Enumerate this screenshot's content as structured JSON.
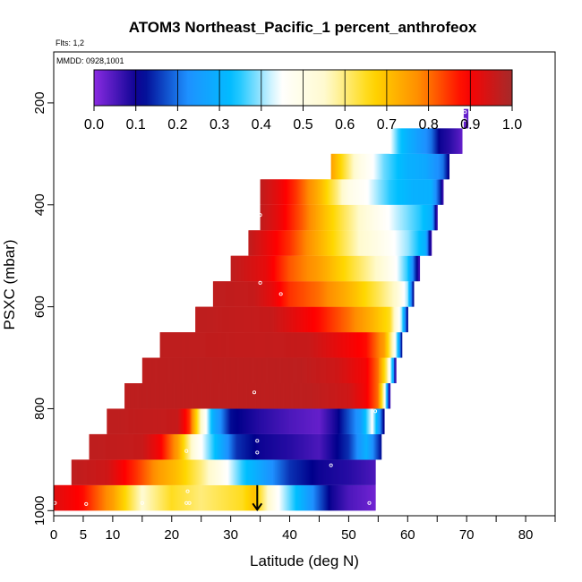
{
  "chart_data": {
    "type": "heatmap",
    "title": "ATOM3 Northeast_Pacific_1 percent_anthrofeox",
    "notes": [
      "Flts: 1,2",
      "MMDD: 0928,1001"
    ],
    "xlabel": "Latitude (deg N)",
    "ylabel": "PSXC (mbar)",
    "xlim": [
      0,
      85
    ],
    "ylim": [
      1010,
      100
    ],
    "x_ticks": [
      0,
      5,
      10,
      20,
      30,
      40,
      50,
      60,
      70,
      80
    ],
    "y_ticks": [
      200,
      400,
      600,
      800,
      1000
    ],
    "colorbar": {
      "range": [
        0,
        1
      ],
      "ticks": [
        "0.0",
        "0.1",
        "0.2",
        "0.3",
        "0.4",
        "0.5",
        "0.6",
        "0.7",
        "0.8",
        "0.9",
        "1.0"
      ],
      "colors": [
        "#8a2be2",
        "#00008b",
        "#1e90ff",
        "#00bfff",
        "#ffffff",
        "#fffacd",
        "#ffd700",
        "#ff8c00",
        "#ff0000",
        "#a52a2a"
      ]
    },
    "layers": [
      {
        "p0": 950,
        "p1": 1000,
        "x0": 0,
        "x1": 54.5,
        "stops": [
          [
            0,
            0.93
          ],
          [
            5,
            0.88
          ],
          [
            10,
            0.75
          ],
          [
            15,
            0.55
          ],
          [
            20,
            0.65
          ],
          [
            25,
            0.6
          ],
          [
            32,
            0.65
          ],
          [
            34,
            0.7
          ],
          [
            38,
            0.45
          ],
          [
            42,
            0.3
          ],
          [
            47,
            0.1
          ],
          [
            50,
            0.05
          ],
          [
            54.5,
            0.02
          ]
        ]
      },
      {
        "p0": 900,
        "p1": 950,
        "x0": 3,
        "x1": 54.5,
        "stops": [
          [
            3,
            0.97
          ],
          [
            9,
            0.95
          ],
          [
            14,
            0.85
          ],
          [
            18,
            0.75
          ],
          [
            21,
            0.7
          ],
          [
            25,
            0.6
          ],
          [
            28,
            0.5
          ],
          [
            32,
            0.35
          ],
          [
            36,
            0.25
          ],
          [
            40,
            0.15
          ],
          [
            45,
            0.1
          ],
          [
            50,
            0.08
          ],
          [
            54.5,
            0.05
          ]
        ]
      },
      {
        "p0": 850,
        "p1": 900,
        "x0": 6,
        "x1": 55.5,
        "stops": [
          [
            6,
            0.97
          ],
          [
            15,
            0.96
          ],
          [
            18,
            0.9
          ],
          [
            21,
            0.75
          ],
          [
            24,
            0.5
          ],
          [
            27,
            0.35
          ],
          [
            31,
            0.15
          ],
          [
            35,
            0.1
          ],
          [
            40,
            0.08
          ],
          [
            45,
            0.05
          ],
          [
            50,
            0.15
          ],
          [
            53,
            0.3
          ],
          [
            55.5,
            0.12
          ]
        ]
      },
      {
        "p0": 800,
        "p1": 850,
        "x0": 9,
        "x1": 56,
        "stops": [
          [
            9,
            0.97
          ],
          [
            21,
            0.96
          ],
          [
            23,
            0.85
          ],
          [
            25,
            0.55
          ],
          [
            27,
            0.3
          ],
          [
            30,
            0.12
          ],
          [
            35,
            0.08
          ],
          [
            40,
            0.05
          ],
          [
            45,
            0.03
          ],
          [
            48,
            0.1
          ],
          [
            52,
            0.25
          ],
          [
            54,
            0.45
          ],
          [
            56,
            0.1
          ]
        ]
      },
      {
        "p0": 750,
        "p1": 800,
        "x0": 12,
        "x1": 57,
        "stops": [
          [
            12,
            0.97
          ],
          [
            44,
            0.97
          ],
          [
            50,
            0.95
          ],
          [
            53,
            0.9
          ],
          [
            55,
            0.8
          ],
          [
            56,
            0.55
          ],
          [
            57,
            0.02
          ]
        ]
      },
      {
        "p0": 700,
        "p1": 750,
        "x0": 15,
        "x1": 58,
        "stops": [
          [
            15,
            0.97
          ],
          [
            42,
            0.97
          ],
          [
            48,
            0.95
          ],
          [
            53,
            0.9
          ],
          [
            55,
            0.8
          ],
          [
            56.5,
            0.6
          ],
          [
            57.5,
            0.3
          ],
          [
            58,
            0.02
          ]
        ]
      },
      {
        "p0": 650,
        "p1": 700,
        "x0": 18,
        "x1": 59,
        "stops": [
          [
            18,
            0.97
          ],
          [
            43,
            0.96
          ],
          [
            48,
            0.92
          ],
          [
            53,
            0.88
          ],
          [
            56,
            0.75
          ],
          [
            57.5,
            0.55
          ],
          [
            58.5,
            0.3
          ],
          [
            59,
            0.1
          ]
        ]
      },
      {
        "p0": 600,
        "p1": 650,
        "x0": 24,
        "x1": 60,
        "stops": [
          [
            24,
            0.97
          ],
          [
            37,
            0.96
          ],
          [
            41,
            0.92
          ],
          [
            45,
            0.88
          ],
          [
            50,
            0.8
          ],
          [
            54,
            0.72
          ],
          [
            57,
            0.65
          ],
          [
            59,
            0.4
          ],
          [
            60,
            0.1
          ]
        ]
      },
      {
        "p0": 550,
        "p1": 600,
        "x0": 27,
        "x1": 61,
        "stops": [
          [
            27,
            0.97
          ],
          [
            34,
            0.96
          ],
          [
            37,
            0.92
          ],
          [
            40,
            0.85
          ],
          [
            45,
            0.8
          ],
          [
            50,
            0.72
          ],
          [
            55,
            0.62
          ],
          [
            58,
            0.55
          ],
          [
            60,
            0.4
          ],
          [
            61,
            0.1
          ]
        ]
      },
      {
        "p0": 500,
        "p1": 550,
        "x0": 30,
        "x1": 62,
        "stops": [
          [
            30,
            0.97
          ],
          [
            36,
            0.92
          ],
          [
            40,
            0.82
          ],
          [
            45,
            0.75
          ],
          [
            50,
            0.65
          ],
          [
            55,
            0.55
          ],
          [
            58,
            0.45
          ],
          [
            60,
            0.35
          ],
          [
            62,
            0.05
          ]
        ]
      },
      {
        "p0": 450,
        "p1": 500,
        "x0": 33,
        "x1": 64,
        "stops": [
          [
            33,
            0.97
          ],
          [
            36,
            0.92
          ],
          [
            40,
            0.85
          ],
          [
            44,
            0.75
          ],
          [
            48,
            0.65
          ],
          [
            52,
            0.55
          ],
          [
            56,
            0.48
          ],
          [
            60,
            0.4
          ],
          [
            63,
            0.3
          ],
          [
            64,
            0.05
          ]
        ]
      },
      {
        "p0": 400,
        "p1": 450,
        "x0": 35,
        "x1": 65,
        "stops": [
          [
            35,
            0.97
          ],
          [
            38,
            0.92
          ],
          [
            42,
            0.82
          ],
          [
            46,
            0.7
          ],
          [
            50,
            0.6
          ],
          [
            54,
            0.5
          ],
          [
            58,
            0.42
          ],
          [
            62,
            0.35
          ],
          [
            64,
            0.3
          ],
          [
            65,
            0.05
          ]
        ]
      },
      {
        "p0": 350,
        "p1": 400,
        "x0": 35,
        "x1": 66,
        "stops": [
          [
            35,
            0.97
          ],
          [
            38,
            0.92
          ],
          [
            41,
            0.85
          ],
          [
            45,
            0.72
          ],
          [
            48,
            0.6
          ],
          [
            50,
            0.5
          ],
          [
            53,
            0.45
          ],
          [
            57,
            0.35
          ],
          [
            61,
            0.3
          ],
          [
            64,
            0.3
          ],
          [
            65.5,
            0.15
          ],
          [
            66,
            0.05
          ]
        ]
      },
      {
        "p0": 300,
        "p1": 350,
        "x0": 47,
        "x1": 67,
        "stops": [
          [
            47,
            0.75
          ],
          [
            50,
            0.6
          ],
          [
            52,
            0.5
          ],
          [
            54,
            0.45
          ],
          [
            56,
            0.38
          ],
          [
            60,
            0.3
          ],
          [
            63,
            0.28
          ],
          [
            66,
            0.2
          ],
          [
            67,
            0.1
          ]
        ]
      },
      {
        "p0": 250,
        "p1": 300,
        "x0": 57,
        "x1": 69.2,
        "stops": [
          [
            57,
            0.45
          ],
          [
            58.5,
            0.35
          ],
          [
            60,
            0.3
          ],
          [
            62,
            0.25
          ],
          [
            64,
            0.2
          ],
          [
            65.5,
            0.1
          ],
          [
            67,
            0.08
          ],
          [
            68.5,
            0.05
          ],
          [
            69.2,
            0.03
          ]
        ]
      },
      {
        "p0": 212,
        "p1": 250,
        "x0": 69.5,
        "x1": 70.2,
        "stops": [
          [
            69.5,
            0.03
          ],
          [
            70.2,
            0.03
          ]
        ]
      }
    ],
    "markers": [
      {
        "x": 0.2,
        "p": 985
      },
      {
        "x": 5.5,
        "p": 987
      },
      {
        "x": 15,
        "p": 985
      },
      {
        "x": 22.5,
        "p": 985
      },
      {
        "x": 22.7,
        "p": 962
      },
      {
        "x": 23,
        "p": 985
      },
      {
        "x": 22.5,
        "p": 883
      },
      {
        "x": 34.5,
        "p": 863
      },
      {
        "x": 34.5,
        "p": 886
      },
      {
        "x": 34,
        "p": 768
      },
      {
        "x": 35,
        "p": 420
      },
      {
        "x": 35,
        "p": 553
      },
      {
        "x": 38.5,
        "p": 575
      },
      {
        "x": 47,
        "p": 911
      },
      {
        "x": 53.5,
        "p": 985
      },
      {
        "x": 54.5,
        "p": 805
      },
      {
        "x": 69.7,
        "p": 218
      },
      {
        "x": 69.7,
        "p": 233
      }
    ],
    "arrow": {
      "x": 34.5,
      "p_from": 950,
      "p_to": 1000
    }
  }
}
